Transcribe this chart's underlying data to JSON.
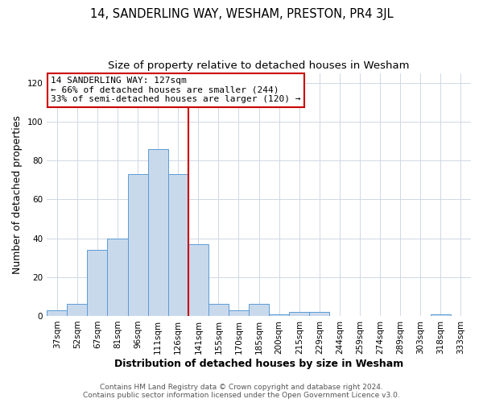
{
  "title": "14, SANDERLING WAY, WESHAM, PRESTON, PR4 3JL",
  "subtitle": "Size of property relative to detached houses in Wesham",
  "xlabel": "Distribution of detached houses by size in Wesham",
  "ylabel": "Number of detached properties",
  "categories": [
    "37sqm",
    "52sqm",
    "67sqm",
    "81sqm",
    "96sqm",
    "111sqm",
    "126sqm",
    "141sqm",
    "155sqm",
    "170sqm",
    "185sqm",
    "200sqm",
    "215sqm",
    "229sqm",
    "244sqm",
    "259sqm",
    "274sqm",
    "289sqm",
    "303sqm",
    "318sqm",
    "333sqm"
  ],
  "bar_heights": [
    3,
    6,
    34,
    40,
    73,
    86,
    73,
    37,
    6,
    3,
    6,
    1,
    2,
    2,
    0,
    0,
    0,
    0,
    0,
    1,
    0
  ],
  "bar_color": "#c9d9ec",
  "bar_edge_color": "#5b9bd5",
  "vline_color": "#cc0000",
  "annotation_title": "14 SANDERLING WAY: 127sqm",
  "annotation_line1": "← 66% of detached houses are smaller (244)",
  "annotation_line2": "33% of semi-detached houses are larger (120) →",
  "annotation_box_color": "#ffffff",
  "annotation_box_edge_color": "#cc0000",
  "ylim": [
    0,
    125
  ],
  "yticks": [
    0,
    20,
    40,
    60,
    80,
    100,
    120
  ],
  "footer_line1": "Contains HM Land Registry data © Crown copyright and database right 2024.",
  "footer_line2": "Contains public sector information licensed under the Open Government Licence v3.0.",
  "background_color": "#ffffff",
  "grid_color": "#d0d8e4",
  "title_fontsize": 10.5,
  "subtitle_fontsize": 9.5,
  "axis_label_fontsize": 9,
  "tick_fontsize": 7.5,
  "annotation_fontsize": 8,
  "footer_fontsize": 6.5
}
